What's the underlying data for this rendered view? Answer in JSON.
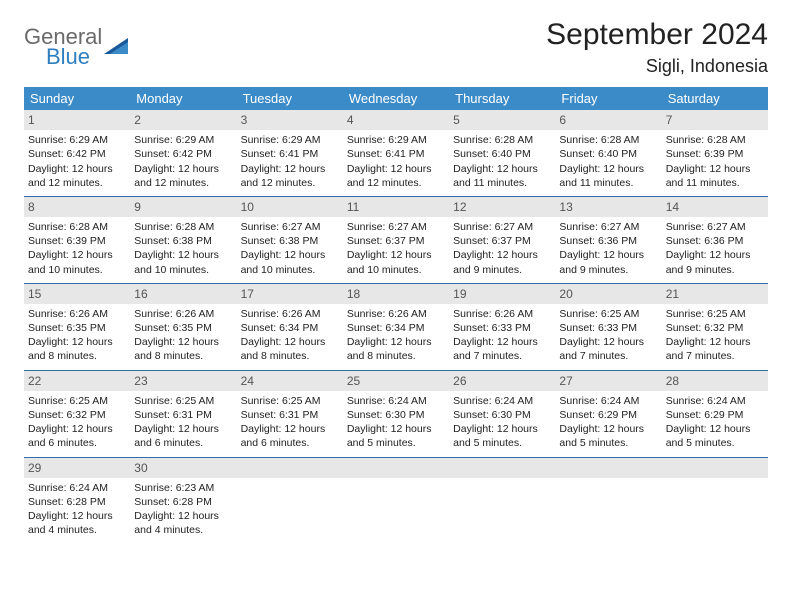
{
  "brand": {
    "part1": "General",
    "part2": "Blue",
    "color_general": "#6a6a6a",
    "color_blue": "#2f7fc0"
  },
  "title": "September 2024",
  "location": "Sigli, Indonesia",
  "colors": {
    "header_bg": "#3b8bc8",
    "header_text": "#ffffff",
    "daynum_bg": "#e7e7e7",
    "daynum_text": "#555555",
    "week_border": "#2f6ea8",
    "body_text": "#222222",
    "page_bg": "#ffffff"
  },
  "typography": {
    "title_size": 30,
    "location_size": 18,
    "dow_size": 13,
    "body_size": 10.5
  },
  "dow": [
    "Sunday",
    "Monday",
    "Tuesday",
    "Wednesday",
    "Thursday",
    "Friday",
    "Saturday"
  ],
  "days": [
    {
      "n": "1",
      "sr": "Sunrise: 6:29 AM",
      "ss": "Sunset: 6:42 PM",
      "d1": "Daylight: 12 hours",
      "d2": "and 12 minutes."
    },
    {
      "n": "2",
      "sr": "Sunrise: 6:29 AM",
      "ss": "Sunset: 6:42 PM",
      "d1": "Daylight: 12 hours",
      "d2": "and 12 minutes."
    },
    {
      "n": "3",
      "sr": "Sunrise: 6:29 AM",
      "ss": "Sunset: 6:41 PM",
      "d1": "Daylight: 12 hours",
      "d2": "and 12 minutes."
    },
    {
      "n": "4",
      "sr": "Sunrise: 6:29 AM",
      "ss": "Sunset: 6:41 PM",
      "d1": "Daylight: 12 hours",
      "d2": "and 12 minutes."
    },
    {
      "n": "5",
      "sr": "Sunrise: 6:28 AM",
      "ss": "Sunset: 6:40 PM",
      "d1": "Daylight: 12 hours",
      "d2": "and 11 minutes."
    },
    {
      "n": "6",
      "sr": "Sunrise: 6:28 AM",
      "ss": "Sunset: 6:40 PM",
      "d1": "Daylight: 12 hours",
      "d2": "and 11 minutes."
    },
    {
      "n": "7",
      "sr": "Sunrise: 6:28 AM",
      "ss": "Sunset: 6:39 PM",
      "d1": "Daylight: 12 hours",
      "d2": "and 11 minutes."
    },
    {
      "n": "8",
      "sr": "Sunrise: 6:28 AM",
      "ss": "Sunset: 6:39 PM",
      "d1": "Daylight: 12 hours",
      "d2": "and 10 minutes."
    },
    {
      "n": "9",
      "sr": "Sunrise: 6:28 AM",
      "ss": "Sunset: 6:38 PM",
      "d1": "Daylight: 12 hours",
      "d2": "and 10 minutes."
    },
    {
      "n": "10",
      "sr": "Sunrise: 6:27 AM",
      "ss": "Sunset: 6:38 PM",
      "d1": "Daylight: 12 hours",
      "d2": "and 10 minutes."
    },
    {
      "n": "11",
      "sr": "Sunrise: 6:27 AM",
      "ss": "Sunset: 6:37 PM",
      "d1": "Daylight: 12 hours",
      "d2": "and 10 minutes."
    },
    {
      "n": "12",
      "sr": "Sunrise: 6:27 AM",
      "ss": "Sunset: 6:37 PM",
      "d1": "Daylight: 12 hours",
      "d2": "and 9 minutes."
    },
    {
      "n": "13",
      "sr": "Sunrise: 6:27 AM",
      "ss": "Sunset: 6:36 PM",
      "d1": "Daylight: 12 hours",
      "d2": "and 9 minutes."
    },
    {
      "n": "14",
      "sr": "Sunrise: 6:27 AM",
      "ss": "Sunset: 6:36 PM",
      "d1": "Daylight: 12 hours",
      "d2": "and 9 minutes."
    },
    {
      "n": "15",
      "sr": "Sunrise: 6:26 AM",
      "ss": "Sunset: 6:35 PM",
      "d1": "Daylight: 12 hours",
      "d2": "and 8 minutes."
    },
    {
      "n": "16",
      "sr": "Sunrise: 6:26 AM",
      "ss": "Sunset: 6:35 PM",
      "d1": "Daylight: 12 hours",
      "d2": "and 8 minutes."
    },
    {
      "n": "17",
      "sr": "Sunrise: 6:26 AM",
      "ss": "Sunset: 6:34 PM",
      "d1": "Daylight: 12 hours",
      "d2": "and 8 minutes."
    },
    {
      "n": "18",
      "sr": "Sunrise: 6:26 AM",
      "ss": "Sunset: 6:34 PM",
      "d1": "Daylight: 12 hours",
      "d2": "and 8 minutes."
    },
    {
      "n": "19",
      "sr": "Sunrise: 6:26 AM",
      "ss": "Sunset: 6:33 PM",
      "d1": "Daylight: 12 hours",
      "d2": "and 7 minutes."
    },
    {
      "n": "20",
      "sr": "Sunrise: 6:25 AM",
      "ss": "Sunset: 6:33 PM",
      "d1": "Daylight: 12 hours",
      "d2": "and 7 minutes."
    },
    {
      "n": "21",
      "sr": "Sunrise: 6:25 AM",
      "ss": "Sunset: 6:32 PM",
      "d1": "Daylight: 12 hours",
      "d2": "and 7 minutes."
    },
    {
      "n": "22",
      "sr": "Sunrise: 6:25 AM",
      "ss": "Sunset: 6:32 PM",
      "d1": "Daylight: 12 hours",
      "d2": "and 6 minutes."
    },
    {
      "n": "23",
      "sr": "Sunrise: 6:25 AM",
      "ss": "Sunset: 6:31 PM",
      "d1": "Daylight: 12 hours",
      "d2": "and 6 minutes."
    },
    {
      "n": "24",
      "sr": "Sunrise: 6:25 AM",
      "ss": "Sunset: 6:31 PM",
      "d1": "Daylight: 12 hours",
      "d2": "and 6 minutes."
    },
    {
      "n": "25",
      "sr": "Sunrise: 6:24 AM",
      "ss": "Sunset: 6:30 PM",
      "d1": "Daylight: 12 hours",
      "d2": "and 5 minutes."
    },
    {
      "n": "26",
      "sr": "Sunrise: 6:24 AM",
      "ss": "Sunset: 6:30 PM",
      "d1": "Daylight: 12 hours",
      "d2": "and 5 minutes."
    },
    {
      "n": "27",
      "sr": "Sunrise: 6:24 AM",
      "ss": "Sunset: 6:29 PM",
      "d1": "Daylight: 12 hours",
      "d2": "and 5 minutes."
    },
    {
      "n": "28",
      "sr": "Sunrise: 6:24 AM",
      "ss": "Sunset: 6:29 PM",
      "d1": "Daylight: 12 hours",
      "d2": "and 5 minutes."
    },
    {
      "n": "29",
      "sr": "Sunrise: 6:24 AM",
      "ss": "Sunset: 6:28 PM",
      "d1": "Daylight: 12 hours",
      "d2": "and 4 minutes."
    },
    {
      "n": "30",
      "sr": "Sunrise: 6:23 AM",
      "ss": "Sunset: 6:28 PM",
      "d1": "Daylight: 12 hours",
      "d2": "and 4 minutes."
    }
  ]
}
